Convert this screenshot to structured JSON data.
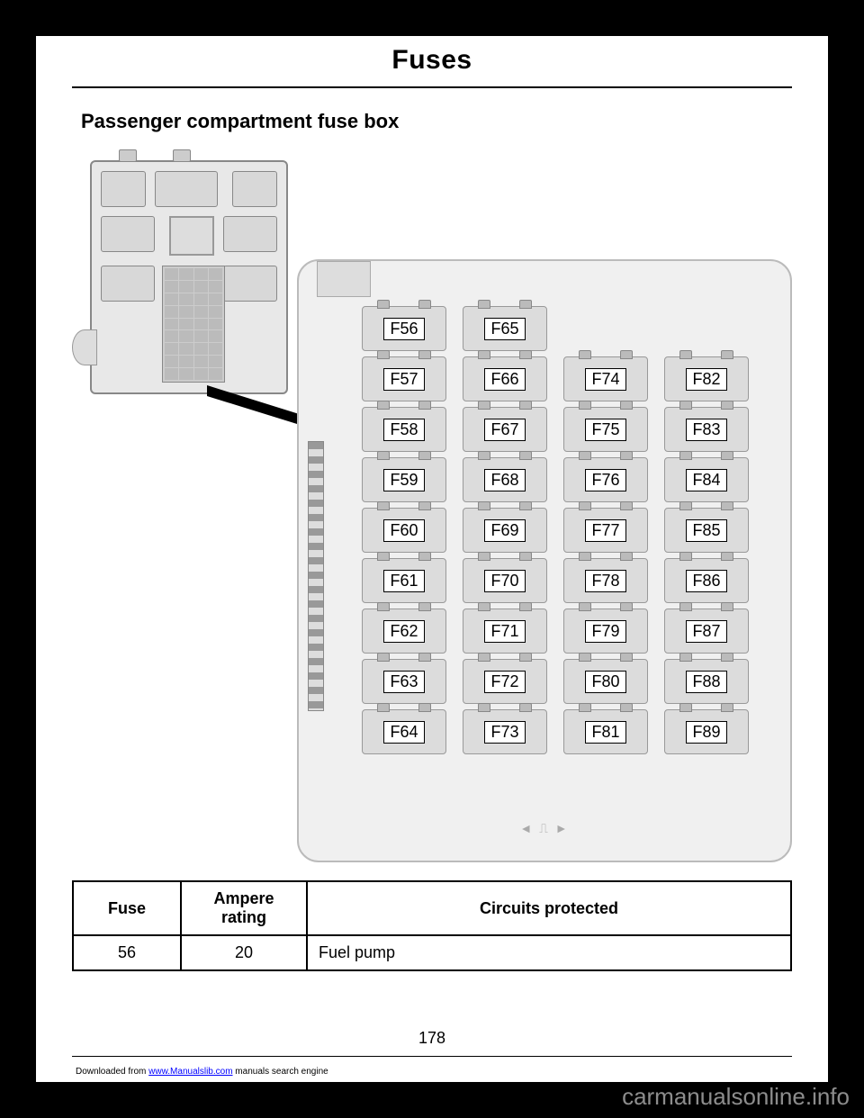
{
  "doc_title": "Fuses",
  "section_title": "Passenger compartment fuse box",
  "page_number": "178",
  "download_note_prefix": "Downloaded from ",
  "download_note_link": "www.Manualslib.com",
  "download_note_suffix": " manuals search engine",
  "watermark": "carmanualsonline.info",
  "fuse_diagram": {
    "columns": [
      {
        "start": 56,
        "count": 9,
        "short": false
      },
      {
        "start": 65,
        "count": 9,
        "short": false
      },
      {
        "start": 74,
        "count": 8,
        "short": true
      },
      {
        "start": 82,
        "count": 8,
        "short": true
      }
    ],
    "label_prefix": "F",
    "fuse_bg": "#dcdcdc",
    "panel_bg": "#f0f0f0"
  },
  "table": {
    "headers": [
      "Fuse",
      "Ampere rating",
      "Circuits protected"
    ],
    "rows": [
      [
        "56",
        "20",
        "Fuel pump"
      ]
    ]
  }
}
